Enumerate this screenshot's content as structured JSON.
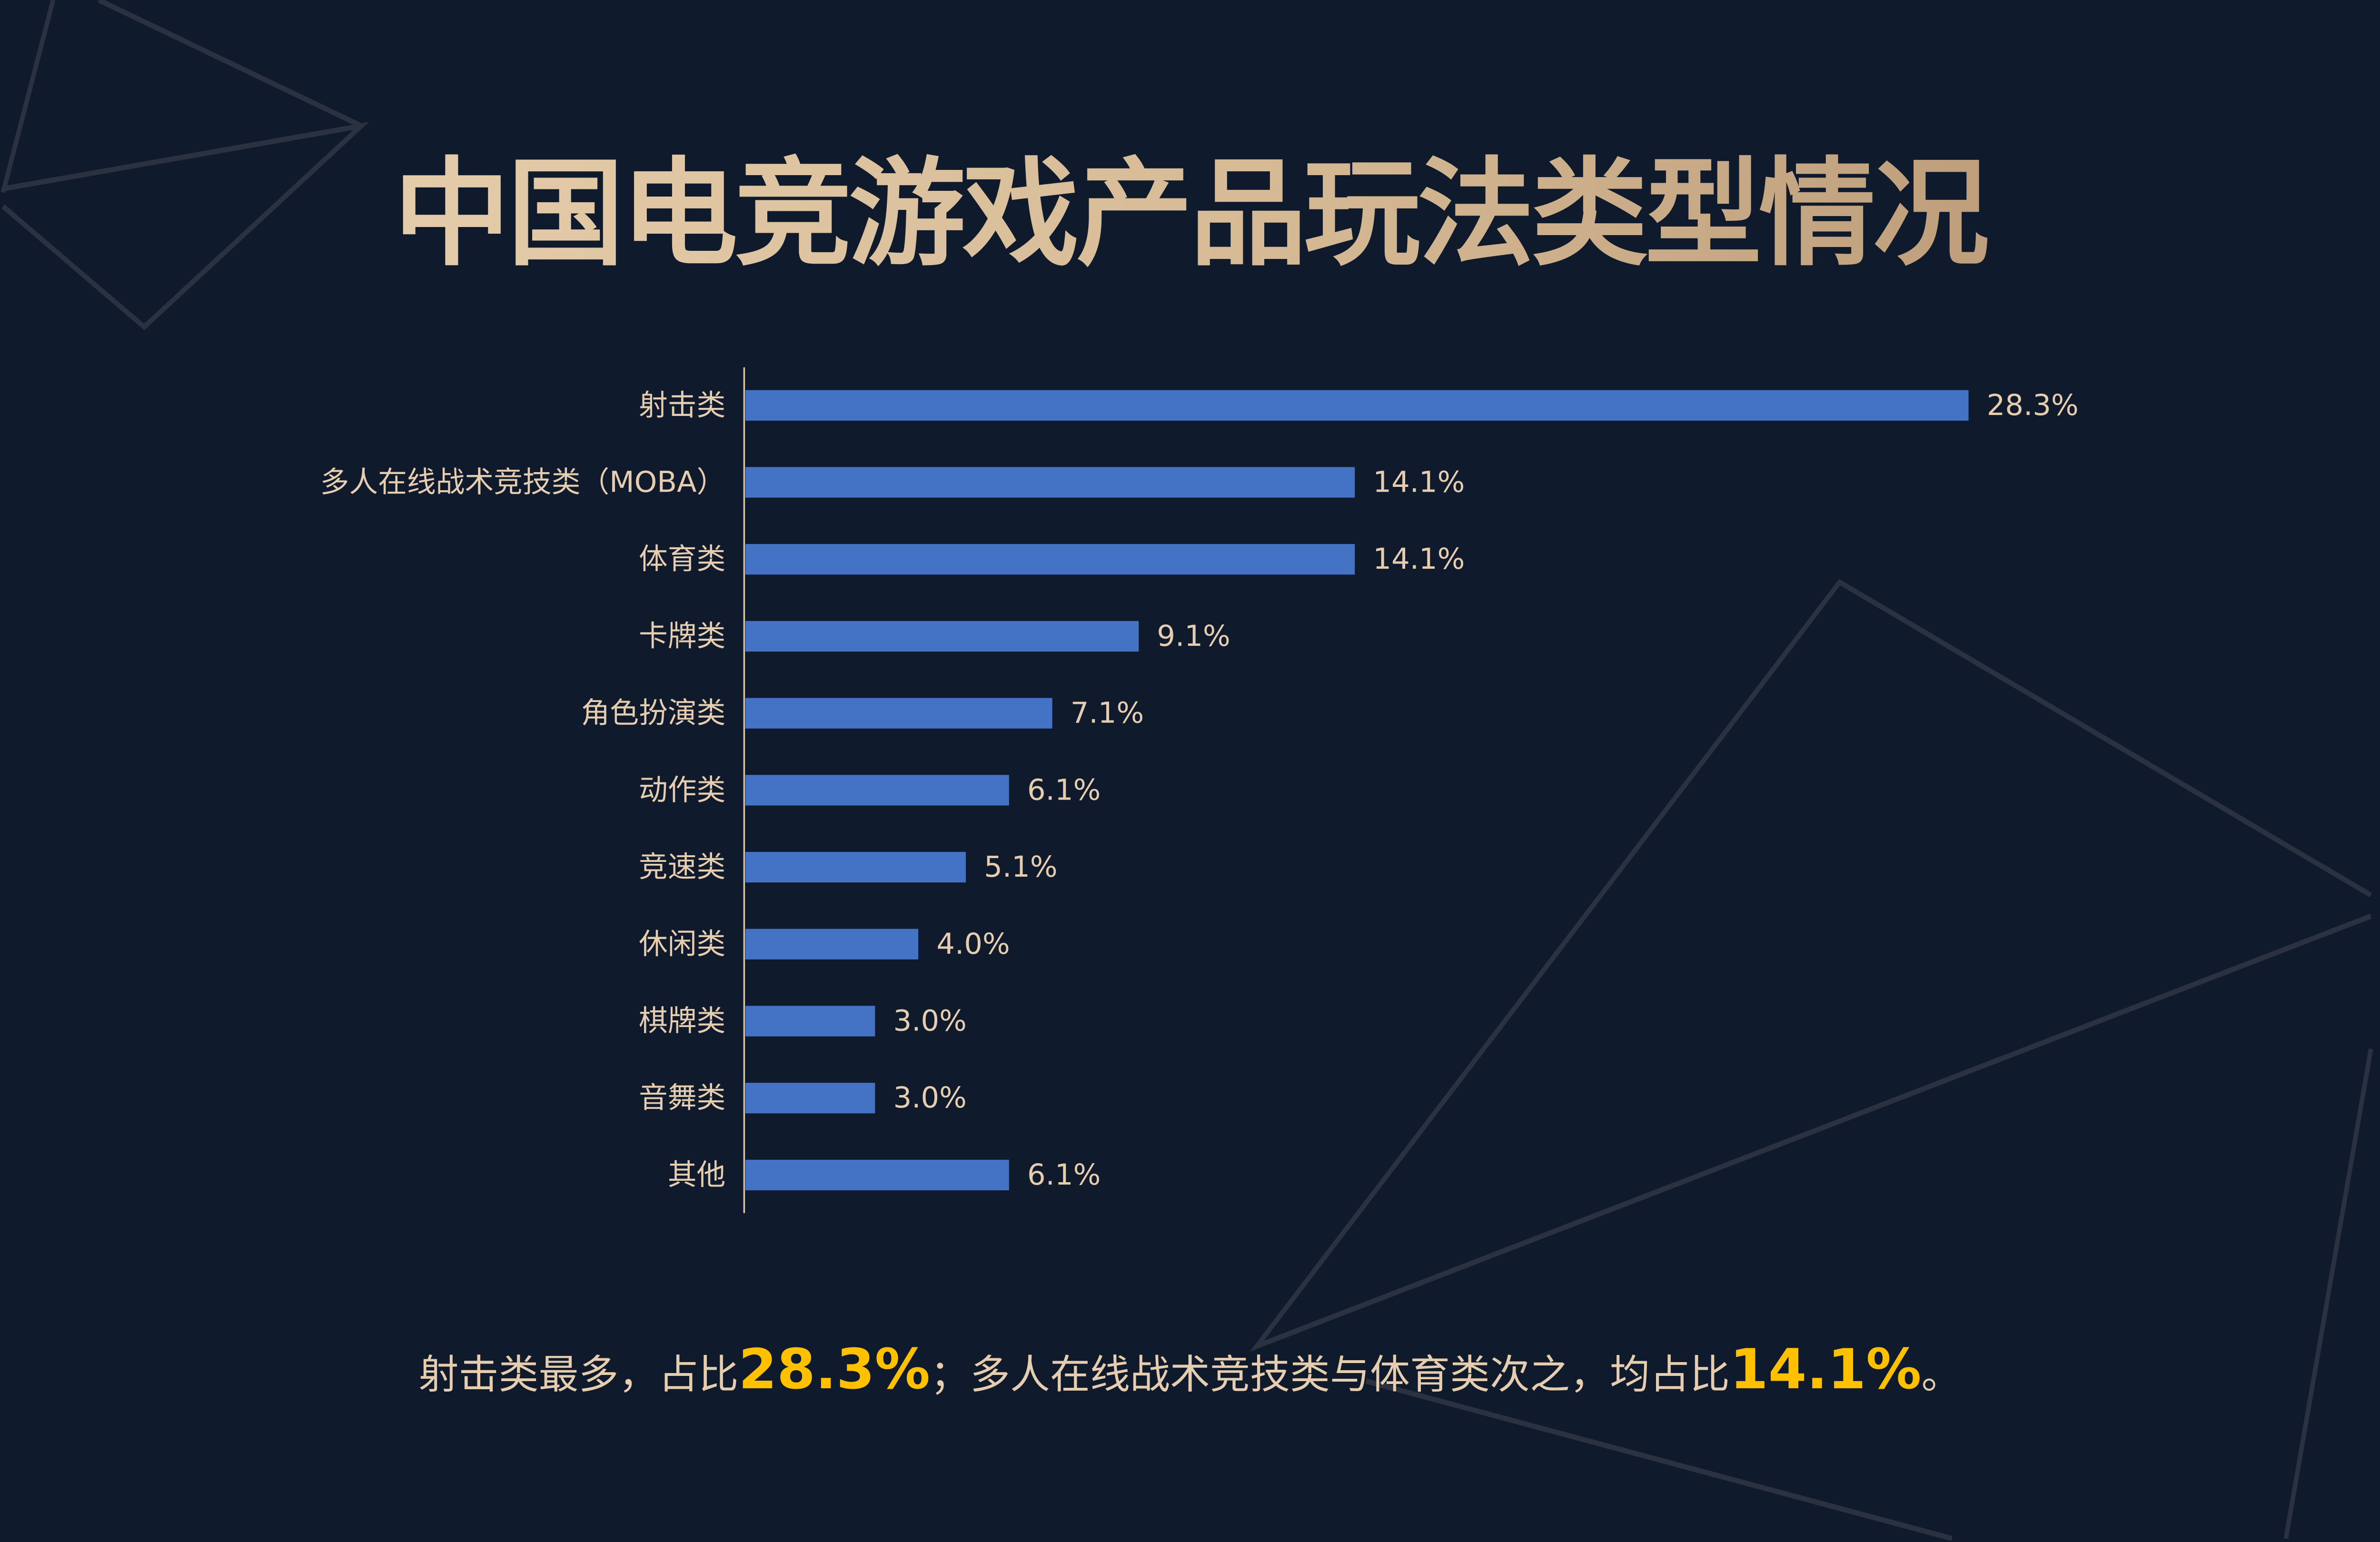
{
  "title": "中国电竞游戏产品玩法类型情况",
  "colors": {
    "background": "#0f1a2c",
    "bar": "#4472c4",
    "text": "#e6cdb0",
    "highlight": "#ffc000"
  },
  "chart_data": {
    "type": "bar",
    "orientation": "horizontal",
    "categories": [
      "射击类",
      "多人在线战术竞技类（MOBA）",
      "体育类",
      "卡牌类",
      "角色扮演类",
      "动作类",
      "竞速类",
      "休闲类",
      "棋牌类",
      "音舞类",
      "其他"
    ],
    "values": [
      28.3,
      14.1,
      14.1,
      9.1,
      7.1,
      6.1,
      5.1,
      4.0,
      3.0,
      3.0,
      6.1
    ],
    "value_labels": [
      "28.3%",
      "14.1%",
      "14.1%",
      "9.1%",
      "7.1%",
      "6.1%",
      "5.1%",
      "4.0%",
      "3.0%",
      "3.0%",
      "6.1%"
    ],
    "unit": "%",
    "grid": false,
    "legend": "none"
  },
  "footer": {
    "part1": "射击类最多，占比",
    "highlight1": "28.3%",
    "part2": "；多人在线战术竞技类与体育类次之，均占比",
    "highlight2": "14.1%",
    "part3": "。"
  }
}
